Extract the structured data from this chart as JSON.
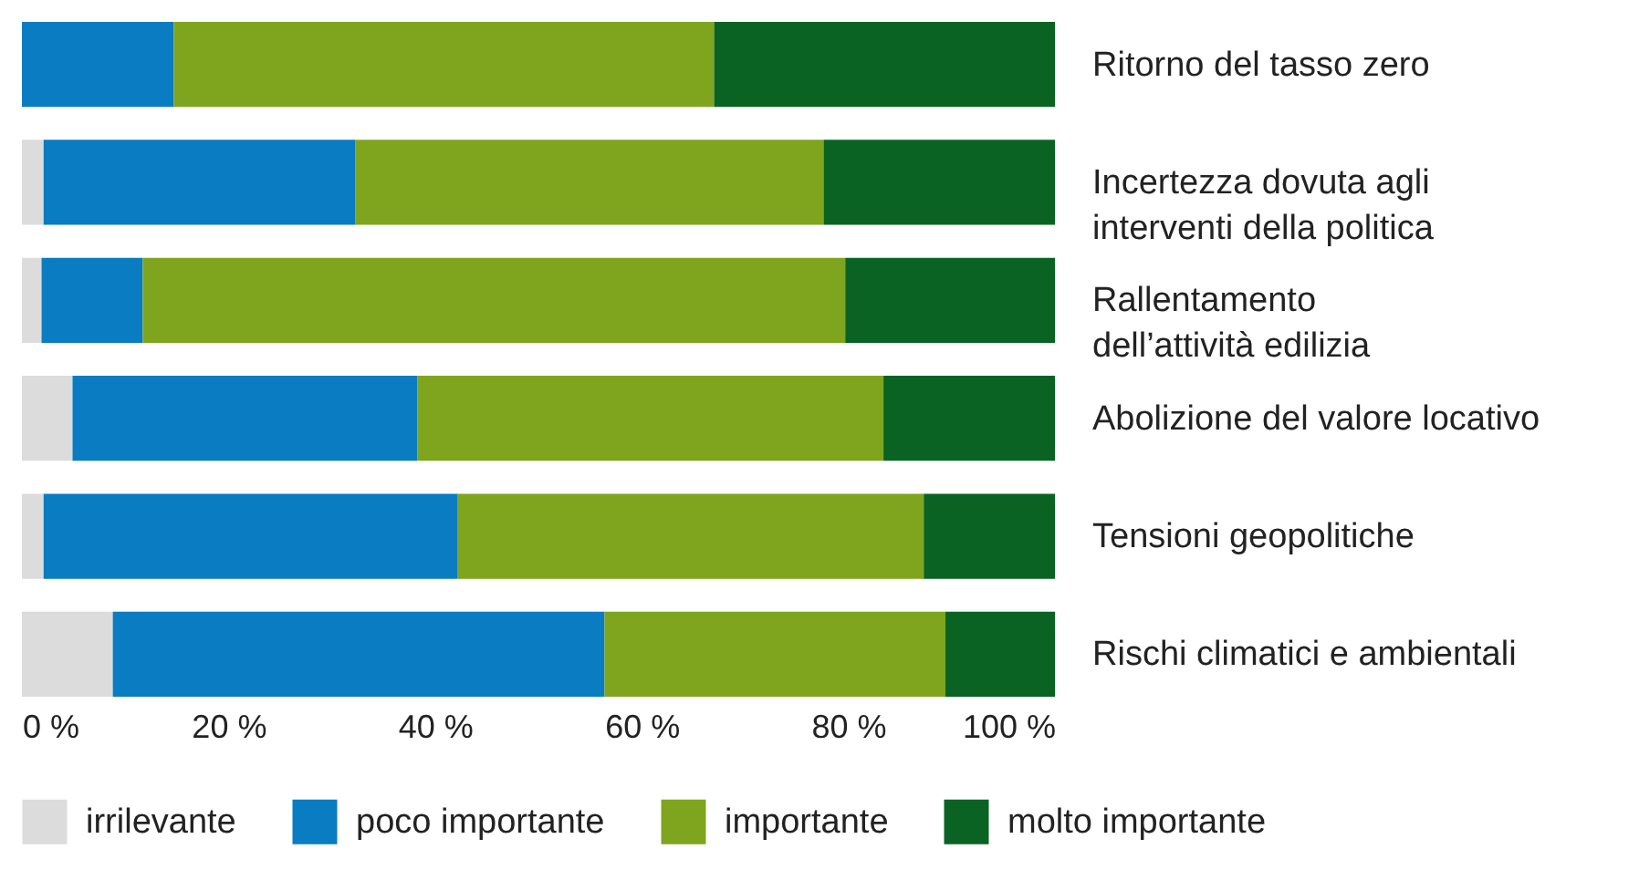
{
  "chart_data": {
    "type": "bar",
    "orientation": "horizontal",
    "stacked": true,
    "categories": [
      "Ritorno del tasso zero",
      "Incertezza dovuta agli\ninterventi della politica",
      "Rallentamento\ndell’attività edilizia",
      "Abolizione del valore locativo",
      "Tensioni geopolitiche",
      "Rischi climatici e ambientali"
    ],
    "series": [
      {
        "name": "irrilevante",
        "color": "#dcdcdc",
        "values": [
          0,
          2.1,
          1.9,
          4.9,
          2.1,
          8.8
        ]
      },
      {
        "name": "poco importante",
        "color": "#0a7cc1",
        "values": [
          14.7,
          30.2,
          9.8,
          33.4,
          40.1,
          47.6
        ]
      },
      {
        "name": "importante",
        "color": "#7fa51e",
        "values": [
          52.3,
          45.3,
          68.0,
          45.1,
          45.1,
          33.0
        ]
      },
      {
        "name": "molto importante",
        "color": "#0a6323",
        "values": [
          33.0,
          22.4,
          20.3,
          16.6,
          12.7,
          10.6
        ]
      }
    ],
    "xlim": [
      0,
      100
    ],
    "xticks": [
      {
        "value": 0,
        "label": "0 %"
      },
      {
        "value": 20,
        "label": "20 %"
      },
      {
        "value": 40,
        "label": "40 %"
      },
      {
        "value": 60,
        "label": "60 %"
      },
      {
        "value": 80,
        "label": "80 %"
      },
      {
        "value": 100,
        "label": "100 %"
      }
    ],
    "grid": false,
    "legend": "bottom"
  }
}
